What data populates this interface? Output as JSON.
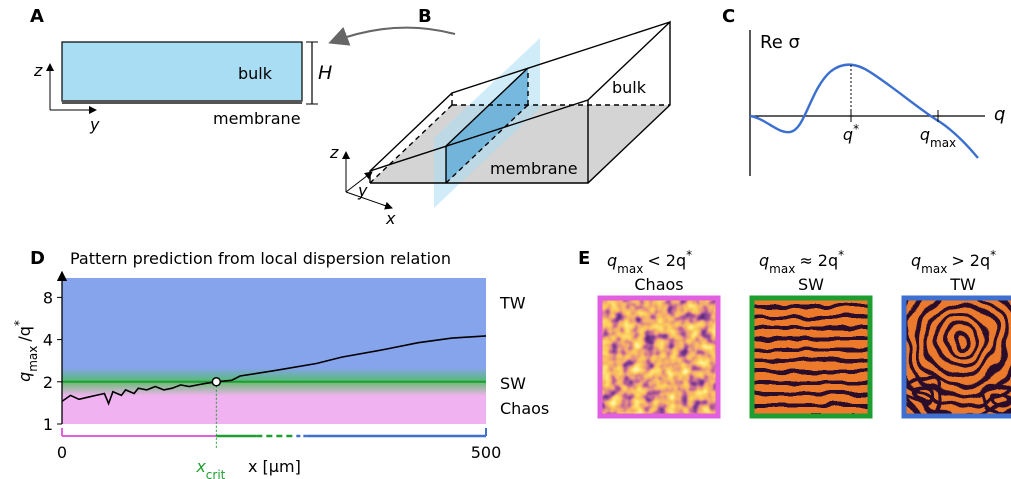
{
  "panels": {
    "A": {
      "label": "A",
      "axis_z": "z",
      "axis_y": "y",
      "bulk": "bulk",
      "height": "H",
      "membrane": "membrane"
    },
    "B": {
      "label": "B",
      "bulk": "bulk",
      "membrane": "membrane",
      "axis_z": "z",
      "axis_y": "y",
      "axis_x": "x"
    },
    "C": {
      "label": "C",
      "ylabel": "Re σ",
      "xlabel": "q",
      "q_star": {
        "base": "q",
        "sup": "*"
      },
      "q_max": {
        "base": "q",
        "sub": "max"
      }
    },
    "E": {
      "label": "E",
      "patterns": [
        {
          "title": {
            "base": "q",
            "sub": "max",
            "rest": "< 2q",
            "sup": "*"
          },
          "name": "Chaos",
          "color": "#e060e0"
        },
        {
          "title": {
            "base": "q",
            "sub": "max",
            "rest": "≈ 2q",
            "sup": "*"
          },
          "name": "SW",
          "color": "#1e9e30"
        },
        {
          "title": {
            "base": "q",
            "sub": "max",
            "rest": "> 2q",
            "sup": "*"
          },
          "name": "TW",
          "color": "#3f6fcf"
        }
      ]
    }
  },
  "chart_data": {
    "type": "line",
    "label": "D",
    "title": "Pattern prediction from local dispersion relation",
    "ylabel": {
      "base": "q",
      "sub": "max",
      "rest": "/q",
      "sup": "*"
    },
    "xlabel": "x [μm]",
    "xcrit_label": {
      "base": "x",
      "sub": "crit"
    },
    "xcrit": 182,
    "threshold": 2,
    "x": [
      0,
      10,
      20,
      30,
      40,
      50,
      55,
      60,
      70,
      75,
      85,
      90,
      100,
      110,
      120,
      130,
      140,
      150,
      160,
      170,
      182,
      200,
      210,
      250,
      300,
      330,
      380,
      420,
      460,
      500
    ],
    "values": [
      1.45,
      1.6,
      1.5,
      1.55,
      1.6,
      1.65,
      1.4,
      1.7,
      1.6,
      1.75,
      1.65,
      1.8,
      1.75,
      1.85,
      1.75,
      1.8,
      1.9,
      1.85,
      1.9,
      1.95,
      2.0,
      2.05,
      2.2,
      2.4,
      2.7,
      3.0,
      3.4,
      3.8,
      4.1,
      4.25
    ],
    "color": "#000000",
    "xlim": [
      0,
      500
    ],
    "xticks": [
      0,
      500
    ],
    "ylim": [
      1,
      11
    ],
    "yticks": [
      1,
      2,
      4,
      8
    ],
    "log_y": true,
    "regions": [
      {
        "name": "TW",
        "color": "#3f6fcf"
      },
      {
        "name": "SW",
        "color": "#1e9e30"
      },
      {
        "name": "Chaos",
        "color": "#e060e0"
      }
    ]
  }
}
